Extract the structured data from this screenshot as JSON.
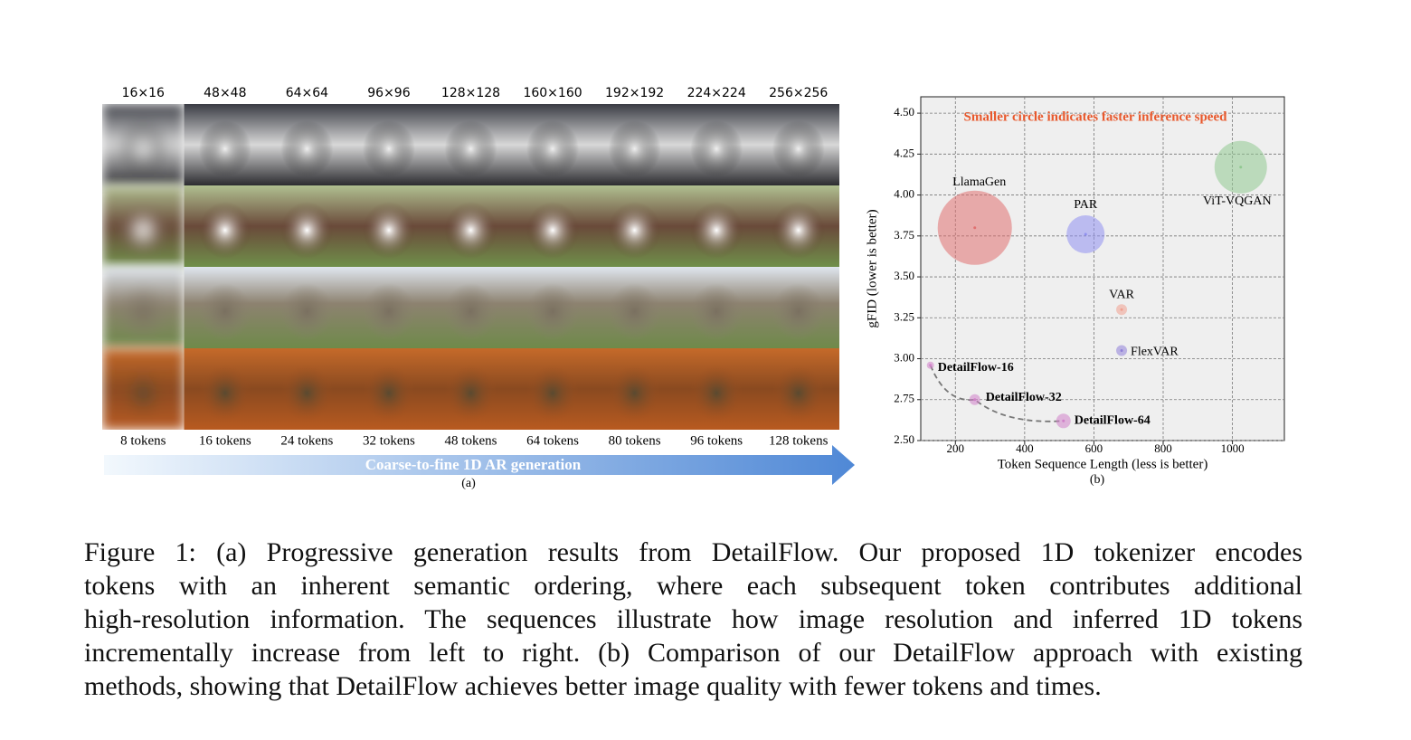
{
  "panel_a": {
    "resolutions": [
      "16×16",
      "48×48",
      "64×64",
      "96×96",
      "128×128",
      "160×160",
      "192×192",
      "224×224",
      "256×256"
    ],
    "tokens": [
      "8 tokens",
      "16 tokens",
      "24 tokens",
      "32 tokens",
      "48 tokens",
      "64 tokens",
      "80 tokens",
      "96 tokens",
      "128 tokens"
    ],
    "arrow_label": "Coarse-to-fine 1D AR generation",
    "sublabel": "(a)"
  },
  "chart_data": {
    "type": "bubble",
    "annotation": "Smaller circle indicates faster inference speed",
    "annotation_color": "#e8582c",
    "x_label": "Token Sequence Length (less is better)",
    "y_label": "gFID (lower is better)",
    "sublabel": "(b)",
    "xlim": [
      100,
      1150
    ],
    "ylim": [
      2.5,
      4.6
    ],
    "xticks": [
      200,
      400,
      600,
      800,
      1000
    ],
    "yticks": [
      {
        "value": 2.5,
        "label": "2.50"
      },
      {
        "value": 2.75,
        "label": "2.75"
      },
      {
        "value": 3.0,
        "label": "3.00"
      },
      {
        "value": 3.25,
        "label": "3.25"
      },
      {
        "value": 3.5,
        "label": "3.50"
      },
      {
        "value": 3.75,
        "label": "3.75"
      },
      {
        "value": 4.0,
        "label": "4.00"
      },
      {
        "value": 4.25,
        "label": "4.25"
      },
      {
        "value": 4.5,
        "label": "4.50"
      }
    ],
    "grid": true,
    "series": [
      {
        "name": "LlamaGen",
        "color": "#e07070",
        "x": [
          256
        ],
        "values": [
          3.8
        ],
        "sizes": [
          41
        ]
      },
      {
        "name": "PAR",
        "color": "#8f8ff0",
        "x": [
          576
        ],
        "values": [
          3.76
        ],
        "sizes": [
          21
        ]
      },
      {
        "name": "ViT-VQGAN",
        "color": "#90c890",
        "x": [
          1024
        ],
        "values": [
          4.17
        ],
        "sizes": [
          29
        ]
      },
      {
        "name": "VAR",
        "color": "#f0a090",
        "x": [
          680
        ],
        "values": [
          3.3
        ],
        "sizes": [
          6
        ]
      },
      {
        "name": "FlexVAR",
        "color": "#9080d8",
        "x": [
          680
        ],
        "values": [
          3.05
        ],
        "sizes": [
          6
        ]
      },
      {
        "name": "DetailFlow-16",
        "color": "#d080c8",
        "x": [
          128
        ],
        "values": [
          2.96
        ],
        "sizes": [
          4
        ],
        "bold": true
      },
      {
        "name": "DetailFlow-32",
        "color": "#d080c8",
        "x": [
          256
        ],
        "values": [
          2.75
        ],
        "sizes": [
          6
        ],
        "bold": true
      },
      {
        "name": "DetailFlow-64",
        "color": "#d080c8",
        "x": [
          512
        ],
        "values": [
          2.62
        ],
        "sizes": [
          8
        ],
        "bold": true
      }
    ]
  },
  "caption": {
    "lines": [
      "Figure 1: (a) Progressive generation results from DetailFlow. Our proposed 1D tokenizer encodes",
      "tokens with an inherent semantic ordering, where each subsequent token contributes additional",
      "high-resolution information. The sequences illustrate how image resolution and inferred 1D tokens",
      "incrementally increase from left to right. (b) Comparison of our DetailFlow approach with existing",
      "methods, showing that DetailFlow achieves better image quality with fewer tokens and times."
    ]
  }
}
